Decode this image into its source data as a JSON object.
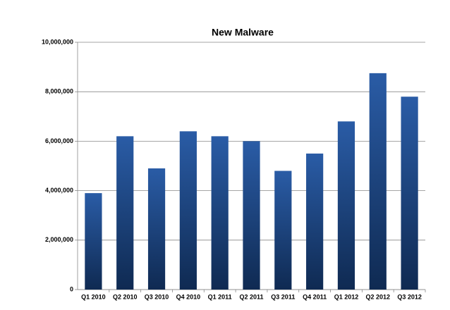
{
  "chart_data": {
    "type": "bar",
    "title": "New Malware",
    "categories": [
      "Q1 2010",
      "Q2 2010",
      "Q3 2010",
      "Q4 2010",
      "Q1 2011",
      "Q2 2011",
      "Q3 2011",
      "Q4 2011",
      "Q1 2012",
      "Q2 2012",
      "Q3 2012"
    ],
    "values": [
      3900000,
      6200000,
      4900000,
      6400000,
      6200000,
      6000000,
      4800000,
      5500000,
      6800000,
      8750000,
      7800000
    ],
    "color": "#2a5ca6",
    "ylim": [
      0,
      10000000
    ],
    "yticks": [
      0,
      {
        "value": 2000000,
        "label": "2,000,000"
      },
      {
        "value": 4000000,
        "label": "4,000,000"
      },
      {
        "value": 6000000,
        "label": "6,000,000"
      },
      {
        "value": 8000000,
        "label": "8,000,000"
      },
      {
        "value": 10000000,
        "label": "10,000,000"
      }
    ],
    "grid": true
  }
}
